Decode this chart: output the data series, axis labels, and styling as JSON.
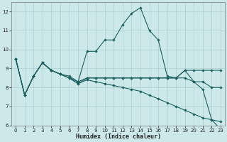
{
  "background_color": "#cce8e8",
  "grid_color": "#aacfcf",
  "line_color": "#1a6060",
  "xlabel": "Humidex (Indice chaleur)",
  "xlim": [
    -0.5,
    23.5
  ],
  "ylim": [
    6,
    12.5
  ],
  "yticks": [
    6,
    7,
    8,
    9,
    10,
    11,
    12
  ],
  "xticks": [
    0,
    1,
    2,
    3,
    4,
    5,
    6,
    7,
    8,
    9,
    10,
    11,
    12,
    13,
    14,
    15,
    16,
    17,
    18,
    19,
    20,
    21,
    22,
    23
  ],
  "series": [
    {
      "x": [
        0,
        1,
        2,
        3,
        4,
        5,
        6,
        7,
        8,
        9,
        10,
        11,
        12,
        13,
        14,
        15,
        16,
        17,
        18,
        19,
        20,
        21,
        22,
        23
      ],
      "y": [
        9.5,
        7.6,
        8.6,
        9.3,
        8.9,
        8.7,
        8.5,
        8.3,
        9.9,
        9.9,
        10.5,
        10.5,
        11.3,
        11.9,
        12.2,
        11.0,
        10.5,
        8.6,
        8.5,
        8.9,
        8.3,
        7.9,
        6.3,
        5.8
      ]
    },
    {
      "x": [
        0,
        1,
        2,
        3,
        4,
        5,
        6,
        7,
        8,
        9,
        10,
        11,
        12,
        13,
        14,
        15,
        16,
        17,
        18,
        19,
        20,
        21,
        22,
        23
      ],
      "y": [
        9.5,
        7.6,
        8.6,
        9.3,
        8.9,
        8.7,
        8.6,
        8.3,
        8.5,
        8.5,
        8.5,
        8.5,
        8.5,
        8.5,
        8.5,
        8.5,
        8.5,
        8.5,
        8.5,
        8.9,
        8.9,
        8.9,
        8.9,
        8.9
      ]
    },
    {
      "x": [
        0,
        1,
        2,
        3,
        4,
        5,
        6,
        7,
        8,
        9,
        10,
        11,
        12,
        13,
        14,
        15,
        16,
        17,
        18,
        19,
        20,
        21,
        22,
        23
      ],
      "y": [
        9.5,
        7.6,
        8.6,
        9.3,
        8.9,
        8.7,
        8.5,
        8.2,
        8.5,
        8.5,
        8.5,
        8.5,
        8.5,
        8.5,
        8.5,
        8.5,
        8.5,
        8.5,
        8.5,
        8.5,
        8.3,
        8.3,
        8.0,
        8.0
      ]
    },
    {
      "x": [
        0,
        1,
        2,
        3,
        4,
        5,
        6,
        7,
        8,
        9,
        10,
        11,
        12,
        13,
        14,
        15,
        16,
        17,
        18,
        19,
        20,
        21,
        22,
        23
      ],
      "y": [
        9.5,
        7.6,
        8.6,
        9.3,
        8.9,
        8.7,
        8.5,
        8.2,
        8.4,
        8.3,
        8.2,
        8.1,
        8.0,
        7.9,
        7.8,
        7.6,
        7.4,
        7.2,
        7.0,
        6.8,
        6.6,
        6.4,
        6.3,
        6.2
      ]
    }
  ]
}
